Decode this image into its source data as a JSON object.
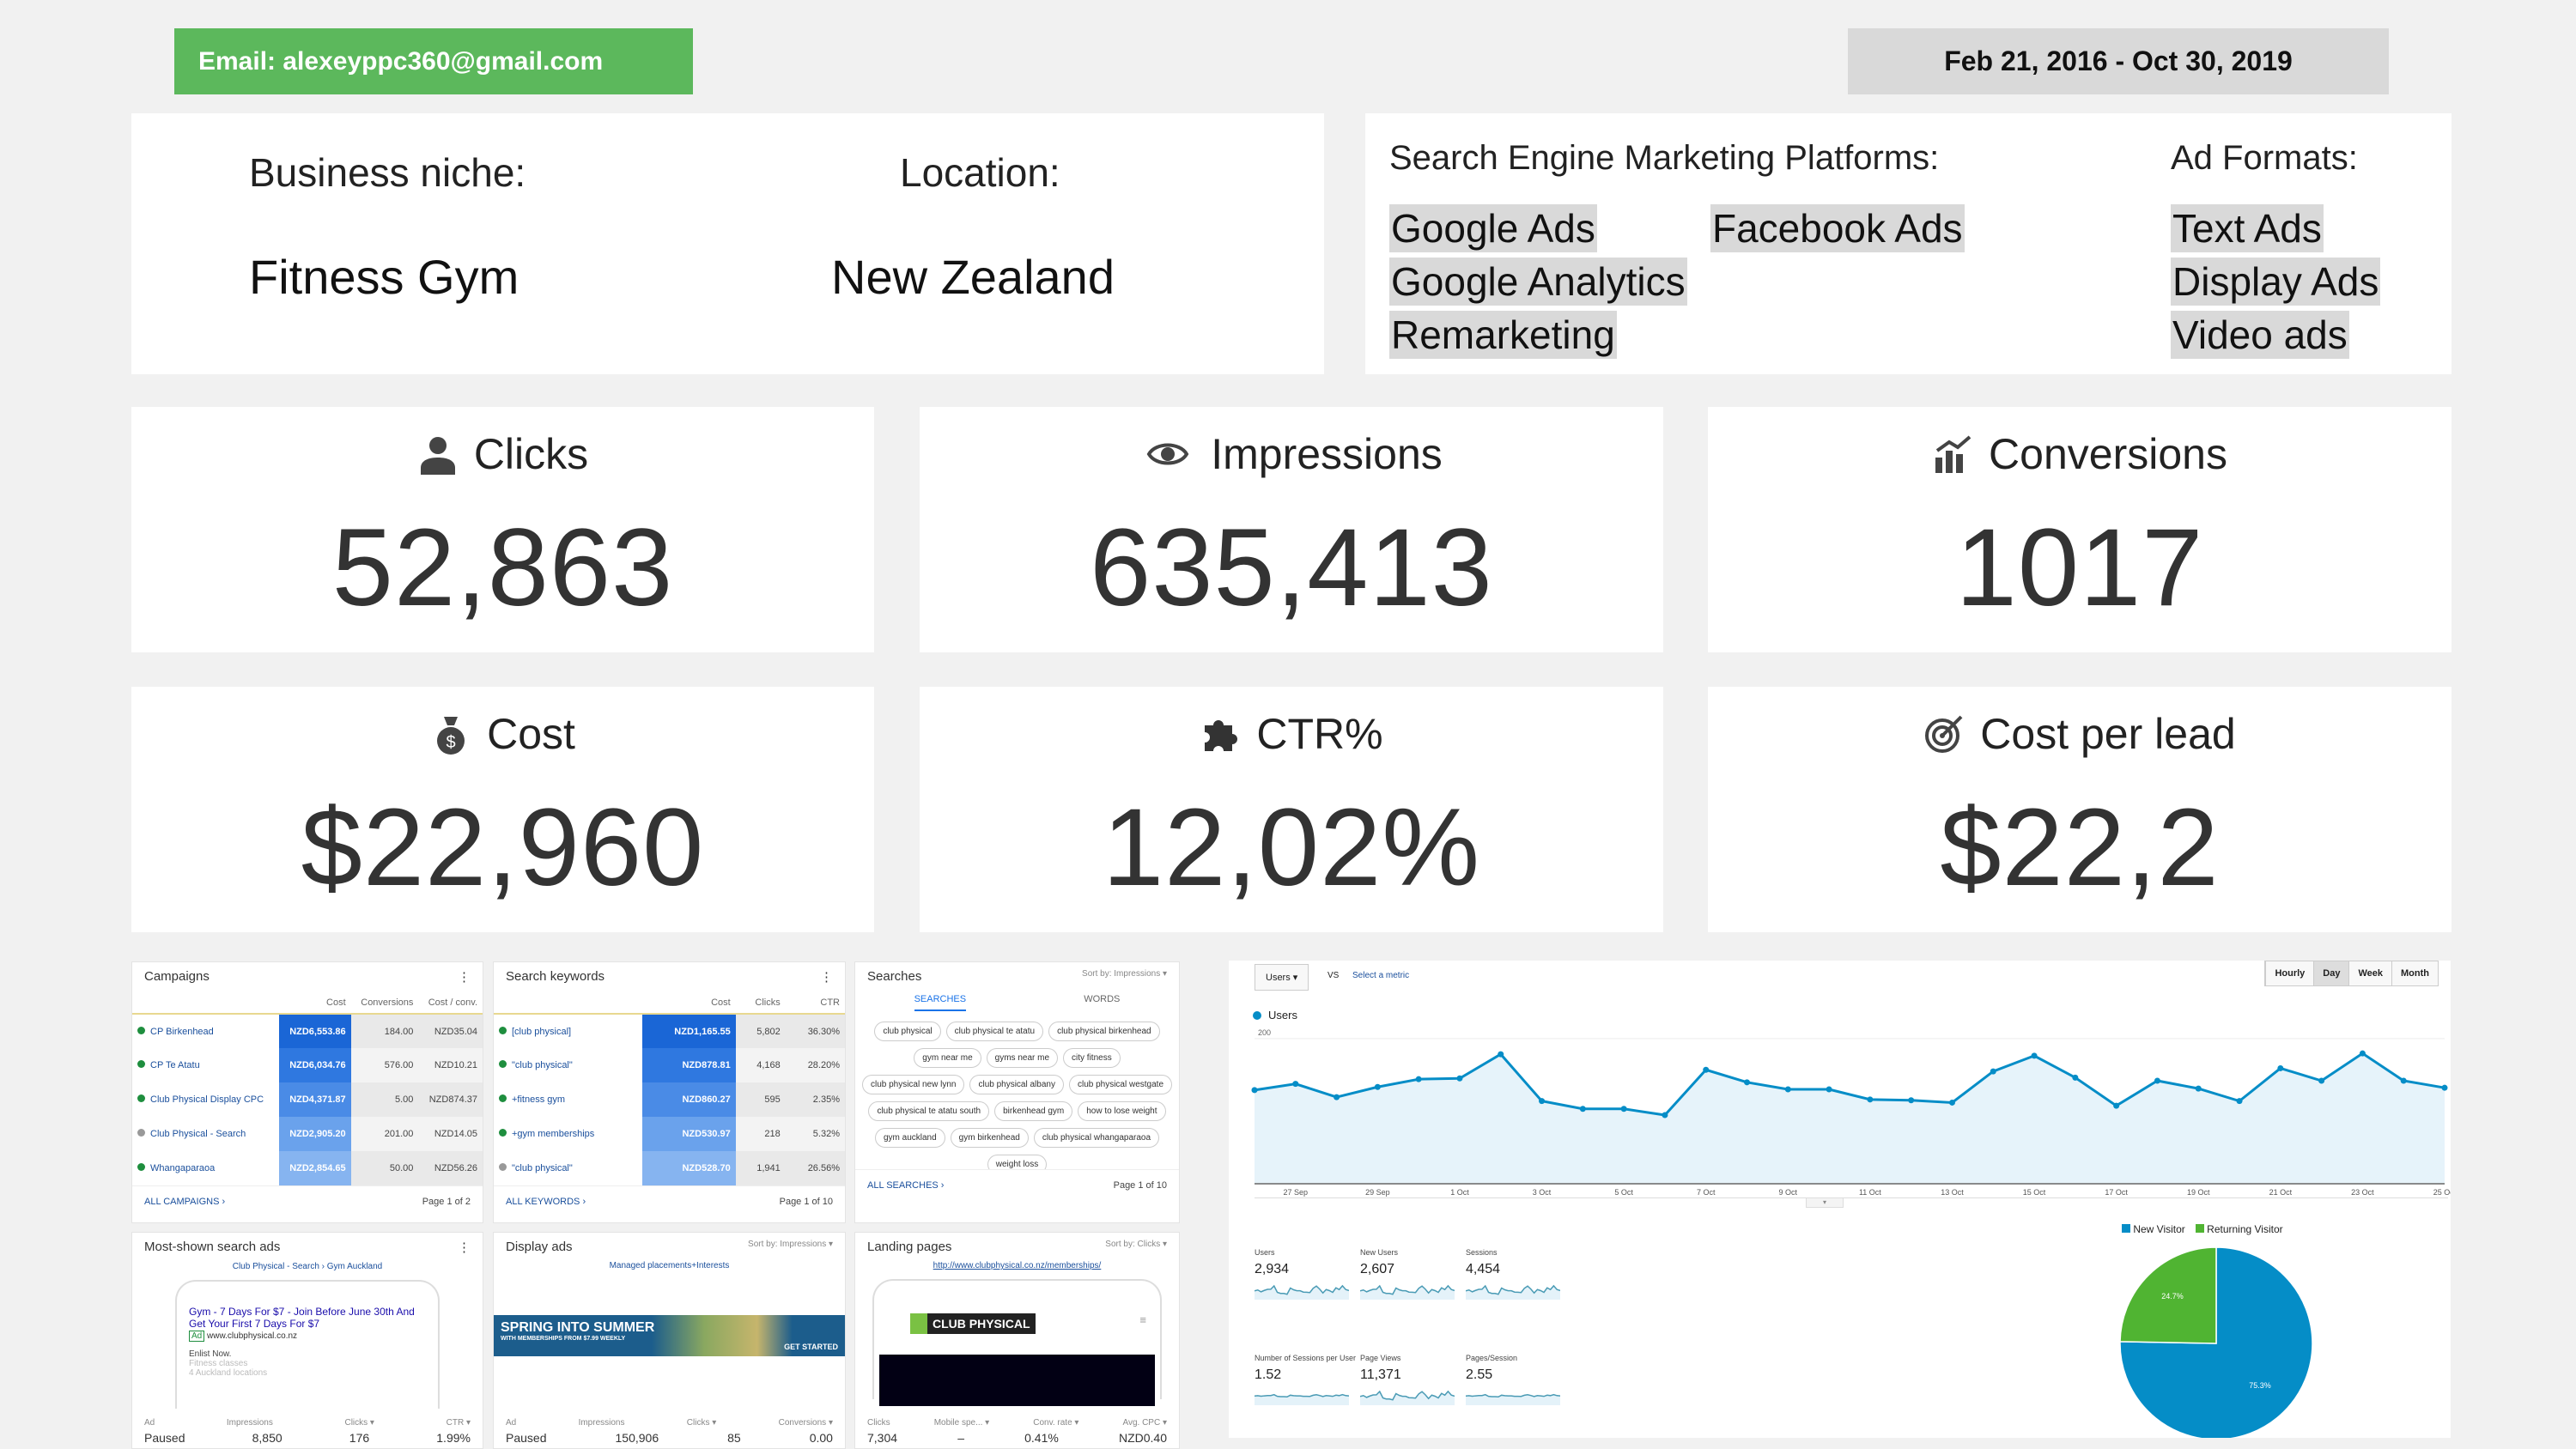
{
  "header": {
    "email": "Email: alexeyppc360@gmail.com",
    "date_range": "Feb 21, 2016 - Oct 30, 2019"
  },
  "info": {
    "niche_label": "Business niche:",
    "niche": "Fitness Gym",
    "location_label": "Location:",
    "location": "New Zealand",
    "platforms_label": "Search Engine Marketing Platforms:",
    "platforms": [
      "Google Ads",
      "Facebook Ads",
      "Google Analytics",
      "Remarketing"
    ],
    "formats_label": "Ad Formats:",
    "formats": [
      "Text Ads",
      "Display Ads",
      "Video ads"
    ]
  },
  "kpis": [
    {
      "label": "Clicks",
      "value": "52,863",
      "icon": "user-icon"
    },
    {
      "label": "Impressions",
      "value": "635,413",
      "icon": "eye-icon"
    },
    {
      "label": "Conversions",
      "value": "1017",
      "icon": "bar-chart-icon"
    },
    {
      "label": "Cost",
      "value": "$22,960",
      "icon": "money-bag-icon"
    },
    {
      "label": "CTR%",
      "value": "12,02%",
      "icon": "puzzle-icon"
    },
    {
      "label": "Cost per lead",
      "value": "$22,2",
      "icon": "target-icon"
    }
  ],
  "campaigns": {
    "title": "Campaigns",
    "cols": [
      "Cost",
      "Conversions",
      "Cost / conv."
    ],
    "rows": [
      {
        "name": "CP Birkenhead",
        "cost": "NZD6,553.86",
        "conv": "184.00",
        "cpc": "NZD35.04",
        "active": true
      },
      {
        "name": "CP Te Atatu",
        "cost": "NZD6,034.76",
        "conv": "576.00",
        "cpc": "NZD10.21",
        "active": true
      },
      {
        "name": "Club Physical Display CPC",
        "cost": "NZD4,371.87",
        "conv": "5.00",
        "cpc": "NZD874.37",
        "active": true
      },
      {
        "name": "Club Physical - Search",
        "cost": "NZD2,905.20",
        "conv": "201.00",
        "cpc": "NZD14.05",
        "active": false
      },
      {
        "name": "Whangaparaoa",
        "cost": "NZD2,854.65",
        "conv": "50.00",
        "cpc": "NZD56.26",
        "active": true
      }
    ],
    "link": "ALL CAMPAIGNS ›",
    "page": "Page 1 of 2"
  },
  "keywords": {
    "title": "Search keywords",
    "cols": [
      "Cost",
      "Clicks",
      "CTR"
    ],
    "rows": [
      {
        "name": "[club physical]",
        "cost": "NZD1,165.55",
        "clicks": "5,802",
        "ctr": "36.30%",
        "active": true
      },
      {
        "name": "\"club physical\"",
        "cost": "NZD878.81",
        "clicks": "4,168",
        "ctr": "28.20%",
        "active": true
      },
      {
        "name": "+fitness gym",
        "cost": "NZD860.27",
        "clicks": "595",
        "ctr": "2.35%",
        "active": true
      },
      {
        "name": "+gym memberships",
        "cost": "NZD530.97",
        "clicks": "218",
        "ctr": "5.32%",
        "active": true
      },
      {
        "name": "\"club physical\"",
        "cost": "NZD528.70",
        "clicks": "1,941",
        "ctr": "26.56%",
        "active": false
      }
    ],
    "link": "ALL KEYWORDS ›",
    "page": "Page 1 of 10"
  },
  "searches": {
    "title": "Searches",
    "sort": "Sort by: Impressions ▾",
    "tabs": [
      "SEARCHES",
      "WORDS"
    ],
    "chips": [
      "club physical",
      "club physical te atatu",
      "club physical birkenhead",
      "gym near me",
      "gyms near me",
      "city fitness",
      "club physical new lynn",
      "club physical albany",
      "club physical westgate",
      "club physical te atatu south",
      "birkenhead gym",
      "how to lose weight",
      "gym auckland",
      "gym birkenhead",
      "club physical whangaparaoa",
      "weight loss"
    ],
    "link": "ALL SEARCHES ›",
    "page": "Page 1 of 10"
  },
  "search_ads": {
    "title": "Most-shown search ads",
    "campaign": "Club Physical - Search › Gym Auckland",
    "headline": "Gym - 7 Days For $7 - Join Before June 30th And Get Your First 7 Days For $7",
    "url": "www.clubphysical.co.nz",
    "ad_badge": "Ad",
    "lines": [
      "Enlist Now.",
      "Fitness classes",
      "4 Auckland locations"
    ],
    "cols": [
      "Ad",
      "Impressions",
      "Clicks ▾",
      "CTR ▾"
    ],
    "values": [
      "Paused",
      "8,850",
      "176",
      "1.99%"
    ]
  },
  "display_ads": {
    "title": "Display ads",
    "sort": "Sort by: Impressions ▾",
    "campaign": "Managed placements+Interests",
    "banner_title": "SPRING INTO SUMMER",
    "banner_sub": "WITH MEMBERSHIPS FROM $7.99 WEEKLY",
    "banner_cta": "GET STARTED",
    "cols": [
      "Ad",
      "Impressions",
      "Clicks ▾",
      "Conversions ▾"
    ],
    "values": [
      "Paused",
      "150,906",
      "85",
      "0.00"
    ]
  },
  "landing": {
    "title": "Landing pages",
    "sort": "Sort by: Clicks ▾",
    "url": "http://www.clubphysical.co.nz/memberships/",
    "logo": "CLUB PHYSICAL",
    "cols": [
      "Clicks",
      "Mobile spe... ▾",
      "Conv. rate ▾",
      "Avg. CPC ▾"
    ],
    "values": [
      "7,304",
      "–",
      "0.41%",
      "NZD0.40"
    ]
  },
  "analytics": {
    "metric": "Users",
    "vs": "VS",
    "select": "Select a metric",
    "granularity": [
      "Hourly",
      "Day",
      "Week",
      "Month"
    ],
    "selected": "Day",
    "stats": [
      {
        "label": "Users",
        "value": "2,934"
      },
      {
        "label": "New Users",
        "value": "2,607"
      },
      {
        "label": "Sessions",
        "value": "4,454"
      },
      {
        "label": "Number of Sessions per User",
        "value": "1.52"
      },
      {
        "label": "Page Views",
        "value": "11,371"
      },
      {
        "label": "Pages/Session",
        "value": "2.55"
      }
    ]
  },
  "chart_data": [
    {
      "type": "area",
      "series": [
        {
          "name": "Users",
          "values": [
            134,
            142,
            125,
            138,
            148,
            149,
            180,
            120,
            110,
            110,
            102,
            160,
            144,
            135,
            135,
            122,
            121,
            118,
            158,
            178,
            150,
            114,
            146,
            136,
            120,
            162,
            146,
            181,
            146,
            137
          ]
        }
      ],
      "x": [
        "26 Sep",
        "27 Sep",
        "28 Sep",
        "29 Sep",
        "30 Sep",
        "1 Oct",
        "2 Oct",
        "3 Oct",
        "4 Oct",
        "5 Oct",
        "6 Oct",
        "7 Oct",
        "8 Oct",
        "9 Oct",
        "10 Oct",
        "11 Oct",
        "12 Oct",
        "13 Oct",
        "14 Oct",
        "15 Oct",
        "16 Oct",
        "17 Oct",
        "18 Oct",
        "19 Oct",
        "20 Oct",
        "21 Oct",
        "22 Oct",
        "23 Oct",
        "24 Oct",
        "25 Oct"
      ],
      "xticks": [
        "27 Sep",
        "29 Sep",
        "1 Oct",
        "3 Oct",
        "5 Oct",
        "7 Oct",
        "9 Oct",
        "11 Oct",
        "13 Oct",
        "15 Oct",
        "17 Oct",
        "19 Oct",
        "21 Oct",
        "23 Oct",
        "25 Oct"
      ],
      "yticks": [
        "100",
        "200"
      ],
      "ylim": [
        14,
        212
      ],
      "color": "#058dc7"
    },
    {
      "type": "pie",
      "categories": [
        "New Visitor",
        "Returning Visitor"
      ],
      "values": [
        75.3,
        24.7
      ],
      "labels": [
        "75.3%",
        "24.7%"
      ],
      "colors": [
        "#058dc7",
        "#50b432"
      ],
      "legend": "top"
    }
  ]
}
